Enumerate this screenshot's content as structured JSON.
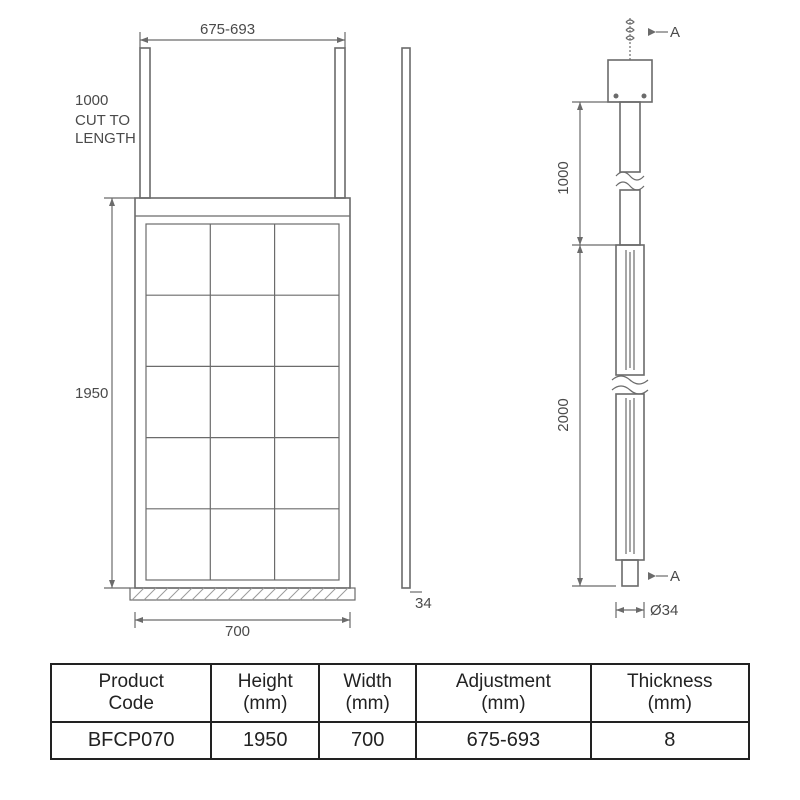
{
  "front_view": {
    "top_pole_height_label": "1000",
    "cut_to_length_label": "CUT TO\nLENGTH",
    "top_width_label": "675-693",
    "panel_height_label": "1950",
    "bottom_width_label": "700",
    "grid_rows": 5,
    "grid_cols": 3,
    "line_color": "#6b6b6b"
  },
  "side_view": {
    "depth_label": "34",
    "line_color": "#6b6b6b"
  },
  "detail_view": {
    "section_label": "A",
    "upper_length_label": "1000",
    "lower_length_label": "2000",
    "diameter_label": "Ø34",
    "line_color": "#6b6b6b"
  },
  "table": {
    "headers": [
      "Product\nCode",
      "Height\n(mm)",
      "Width\n(mm)",
      "Adjustment\n(mm)",
      "Thickness\n(mm)"
    ],
    "row": [
      "BFCP070",
      "1950",
      "700",
      "675-693",
      "8"
    ],
    "border_color": "#222222",
    "header_fontsize": 19,
    "cell_fontsize": 20
  },
  "colors": {
    "background": "#ffffff",
    "stroke": "#6b6b6b",
    "text": "#4a4a4a",
    "table_text": "#222222"
  }
}
